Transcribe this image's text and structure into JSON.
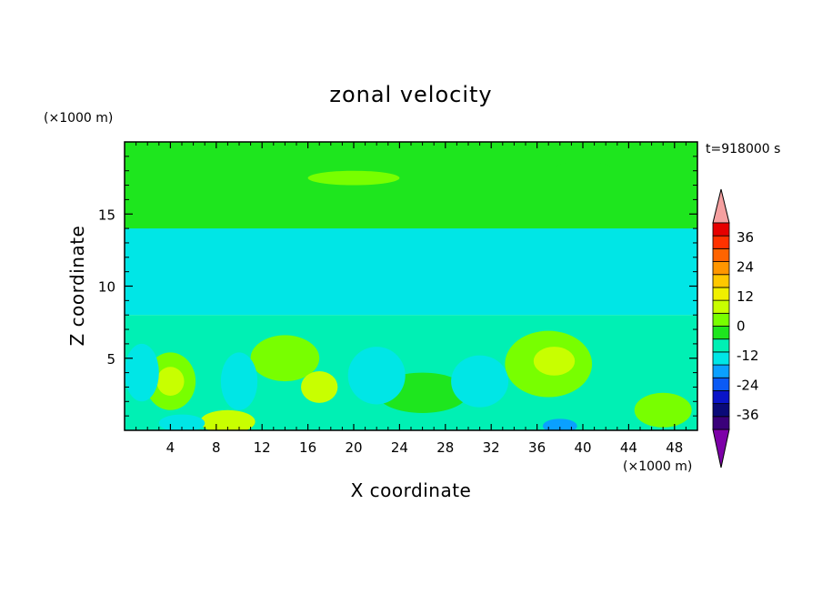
{
  "chart_data": {
    "type": "heatmap",
    "title": "zonal velocity",
    "xlabel": "X coordinate",
    "ylabel": "Z coordinate",
    "x_unit_label": "(×1000 m)",
    "y_unit_label": "(×1000 m)",
    "time_label": "t=918000 s",
    "xlim": [
      0,
      50
    ],
    "ylim": [
      0,
      20
    ],
    "x_ticks": [
      4,
      8,
      12,
      16,
      20,
      24,
      28,
      32,
      36,
      40,
      44,
      48
    ],
    "y_ticks": [
      5,
      10,
      15
    ],
    "colorbar": {
      "min": -42,
      "max": 42,
      "step": 6,
      "labels": [
        36,
        24,
        12,
        0,
        -12,
        -24,
        -36
      ],
      "colors": [
        "#7d00a8",
        "#3a007a",
        "#0a0a78",
        "#0a14c8",
        "#0a5af5",
        "#0aa0ff",
        "#00e6e6",
        "#00f0b4",
        "#1ee61e",
        "#78ff00",
        "#c8ff00",
        "#f0f000",
        "#ffc800",
        "#ff9600",
        "#ff6400",
        "#ff3200",
        "#e60000",
        "#f5a0a0"
      ]
    },
    "layers": [
      {
        "value": 3,
        "region": "upper band 16-20 km",
        "x": [
          0,
          50
        ],
        "y": [
          15.5,
          20
        ]
      },
      {
        "value": 0,
        "region": "band 14-16 km",
        "x": [
          0,
          50
        ],
        "y": [
          13.5,
          16.5
        ]
      },
      {
        "value": -9,
        "region": "mid band 8-14 km",
        "x": [
          0,
          50
        ],
        "y": [
          8,
          14
        ]
      },
      {
        "value": -3,
        "region": "lower band 0-8 km",
        "x": [
          0,
          50
        ],
        "y": [
          0,
          8
        ]
      }
    ],
    "blobs": [
      {
        "x": 4,
        "y": 3.4,
        "rx": 2.2,
        "ry": 2.0,
        "value": 9
      },
      {
        "x": 4,
        "y": 3.4,
        "rx": 1.2,
        "ry": 1.0,
        "value": 12
      },
      {
        "x": 14,
        "y": 5,
        "rx": 3,
        "ry": 1.6,
        "value": 9
      },
      {
        "x": 17,
        "y": 3,
        "rx": 1.6,
        "ry": 1.1,
        "value": 12
      },
      {
        "x": 37,
        "y": 4.6,
        "rx": 3.8,
        "ry": 2.3,
        "value": 9
      },
      {
        "x": 37.5,
        "y": 4.8,
        "rx": 1.8,
        "ry": 1.0,
        "value": 12
      },
      {
        "x": 26,
        "y": 2.6,
        "rx": 4,
        "ry": 1.4,
        "value": 3
      },
      {
        "x": 9,
        "y": 0.6,
        "rx": 2.4,
        "ry": 0.8,
        "value": 12
      },
      {
        "x": 47,
        "y": 1.4,
        "rx": 2.5,
        "ry": 1.2,
        "value": 9
      },
      {
        "x": 10,
        "y": 3.4,
        "rx": 1.6,
        "ry": 2.0,
        "value": -9
      },
      {
        "x": 1.5,
        "y": 4.0,
        "rx": 1.5,
        "ry": 2.0,
        "value": -9
      },
      {
        "x": 22,
        "y": 3.8,
        "rx": 2.5,
        "ry": 2.0,
        "value": -9
      },
      {
        "x": 31,
        "y": 3.4,
        "rx": 2.5,
        "ry": 1.8,
        "value": -9
      },
      {
        "x": 5,
        "y": 0.5,
        "rx": 2,
        "ry": 0.6,
        "value": -12
      },
      {
        "x": 38,
        "y": 0.3,
        "rx": 1.5,
        "ry": 0.5,
        "value": -18
      },
      {
        "x": 42,
        "y": 13.2,
        "rx": 3,
        "ry": 0.5,
        "value": -12
      },
      {
        "x": 43.5,
        "y": 10.0,
        "rx": 2.2,
        "ry": 0.4,
        "value": -12
      },
      {
        "x": 20,
        "y": 17.5,
        "rx": 4,
        "ry": 0.5,
        "value": 9
      },
      {
        "x": 40,
        "y": 18.2,
        "rx": 2.5,
        "ry": 0.4,
        "value": 0
      }
    ]
  }
}
